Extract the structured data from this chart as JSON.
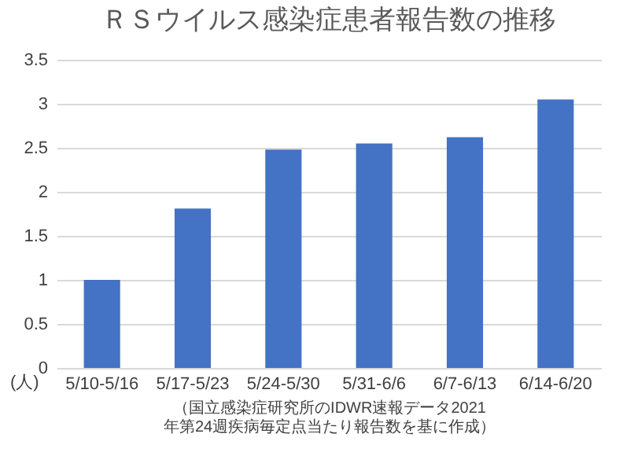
{
  "chart_data": {
    "type": "bar",
    "title": "ＲＳウイルス感染症患者報告数の推移",
    "ylabel": "(人)",
    "categories": [
      "5/10-5/16",
      "5/17-5/23",
      "5/24-5/30",
      "5/31-6/6",
      "6/7-6/13",
      "6/14-6/20"
    ],
    "values": [
      1.0,
      1.81,
      2.48,
      2.55,
      2.62,
      3.05
    ],
    "color": "#4472c4",
    "ylim": [
      0,
      3.5
    ],
    "yticks": [
      0,
      0.5,
      1,
      1.5,
      2,
      2.5,
      3,
      3.5
    ],
    "grid": "y",
    "annotations": [
      "（国立感染症研究所のIDWR速報データ2021年第24週疾病毎定点当たり報告数を基に作成）"
    ]
  }
}
